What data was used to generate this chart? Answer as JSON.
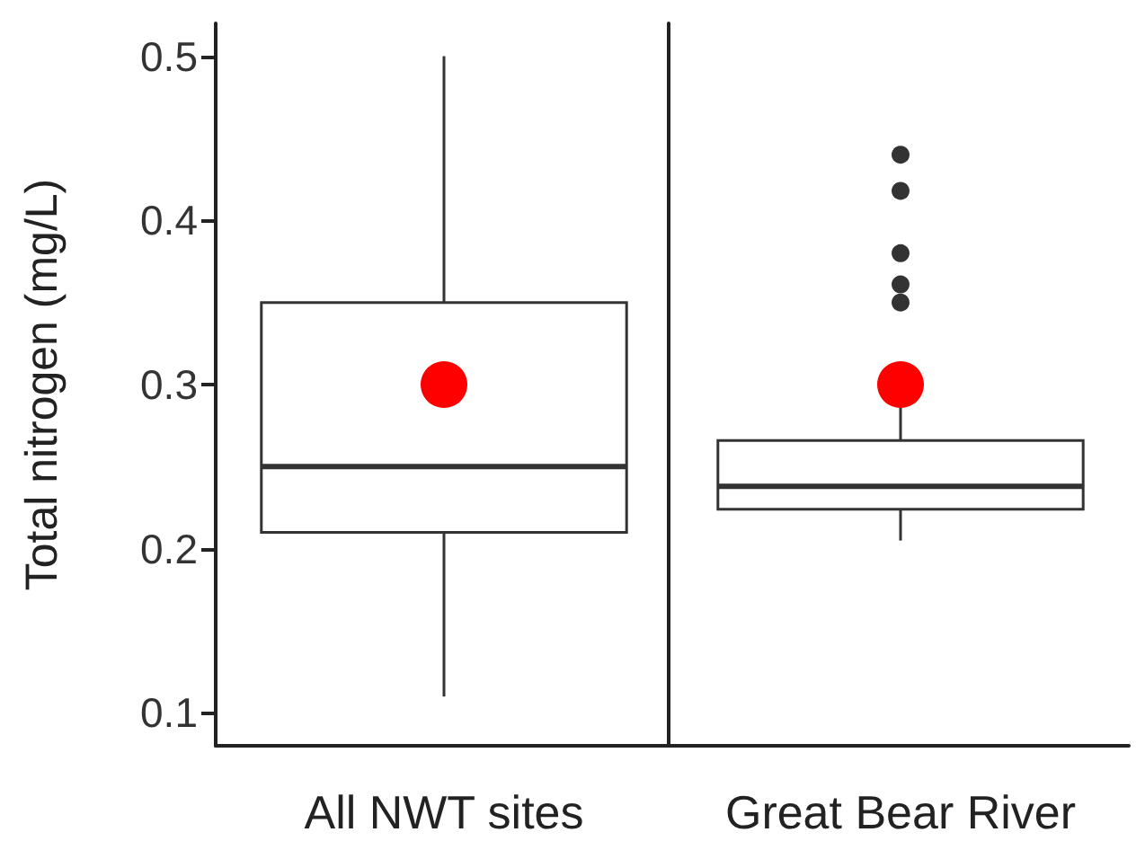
{
  "chart_data": {
    "type": "box",
    "categories": [
      "All NWT sites",
      "Great Bear River"
    ],
    "ylabel": "Total nitrogen (mg/L)",
    "ylim": [
      0.08,
      0.52
    ],
    "yticks": [
      0.1,
      0.2,
      0.3,
      0.4,
      0.5
    ],
    "grid": false,
    "color": "#ffffff",
    "boxes": [
      {
        "low": 0.11,
        "q1": 0.21,
        "median": 0.25,
        "q3": 0.35,
        "high": 0.5
      },
      {
        "low": 0.205,
        "q1": 0.224,
        "median": 0.238,
        "q3": 0.266,
        "high": 0.31,
        "outliers": [
          0.44,
          0.418,
          0.38,
          0.361,
          0.35
        ]
      }
    ],
    "series": [
      {
        "type": "scatter",
        "color": "#ff0000",
        "x": [
          "All NWT sites",
          "Great Bear River"
        ],
        "values": [
          0.3,
          0.3
        ]
      }
    ]
  }
}
